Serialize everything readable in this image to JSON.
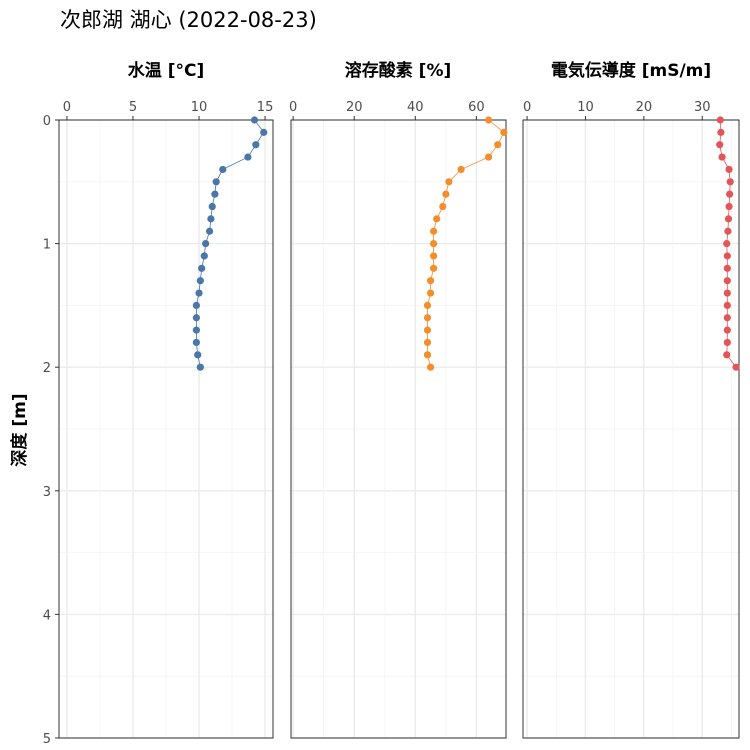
{
  "title": "次郎湖 湖心 (2022-08-23)",
  "y_axis_label": "深度 [m]",
  "chart_data": [
    {
      "type": "line",
      "panel_title": "水温 [°C]",
      "xlim": [
        -0.6,
        15.6
      ],
      "x_ticks": [
        0,
        5,
        10,
        15
      ],
      "ylim": [
        0,
        5
      ],
      "y_ticks": [
        0,
        1,
        2,
        3,
        4,
        5
      ],
      "y_reversed": true,
      "color": "#4a76a8",
      "depth": [
        0,
        0.1,
        0.2,
        0.3,
        0.4,
        0.5,
        0.6,
        0.7,
        0.8,
        0.9,
        1.0,
        1.1,
        1.2,
        1.3,
        1.4,
        1.5,
        1.6,
        1.7,
        1.8,
        1.9,
        2.0
      ],
      "values": [
        14.2,
        14.9,
        14.3,
        13.7,
        11.8,
        11.3,
        11.2,
        11.0,
        10.9,
        10.8,
        10.5,
        10.4,
        10.2,
        10.1,
        10.0,
        9.8,
        9.8,
        9.8,
        9.8,
        9.9,
        10.1
      ]
    },
    {
      "type": "line",
      "panel_title": "溶存酸素 [%]",
      "xlim": [
        -0.7,
        69.7
      ],
      "x_ticks": [
        0,
        20,
        40,
        60
      ],
      "ylim": [
        0,
        5
      ],
      "y_ticks": [
        0,
        1,
        2,
        3,
        4,
        5
      ],
      "y_reversed": true,
      "color": "#f28e2b",
      "depth": [
        0,
        0.1,
        0.2,
        0.3,
        0.4,
        0.5,
        0.6,
        0.7,
        0.8,
        0.9,
        1.0,
        1.1,
        1.2,
        1.3,
        1.4,
        1.5,
        1.6,
        1.7,
        1.8,
        1.9,
        2.0
      ],
      "values": [
        64,
        69,
        67,
        64,
        55,
        51,
        50,
        49,
        47,
        46,
        46,
        46,
        46,
        45,
        45,
        44,
        44,
        44,
        44,
        44,
        45
      ]
    },
    {
      "type": "line",
      "panel_title": "電気伝導度 [mS/m]",
      "xlim": [
        -0.7,
        36.3
      ],
      "x_ticks": [
        0,
        10,
        20,
        30
      ],
      "ylim": [
        0,
        5
      ],
      "y_ticks": [
        0,
        1,
        2,
        3,
        4,
        5
      ],
      "y_reversed": true,
      "color": "#e15759",
      "depth": [
        0,
        0.1,
        0.2,
        0.3,
        0.4,
        0.5,
        0.6,
        0.7,
        0.8,
        0.9,
        1.0,
        1.1,
        1.2,
        1.3,
        1.4,
        1.5,
        1.6,
        1.7,
        1.8,
        1.9,
        2.0
      ],
      "values": [
        33.1,
        33.2,
        33.0,
        33.4,
        34.6,
        34.8,
        34.7,
        34.6,
        34.5,
        34.4,
        34.2,
        34.3,
        34.3,
        34.3,
        34.3,
        34.3,
        34.3,
        34.3,
        34.3,
        34.2,
        35.8
      ]
    }
  ]
}
